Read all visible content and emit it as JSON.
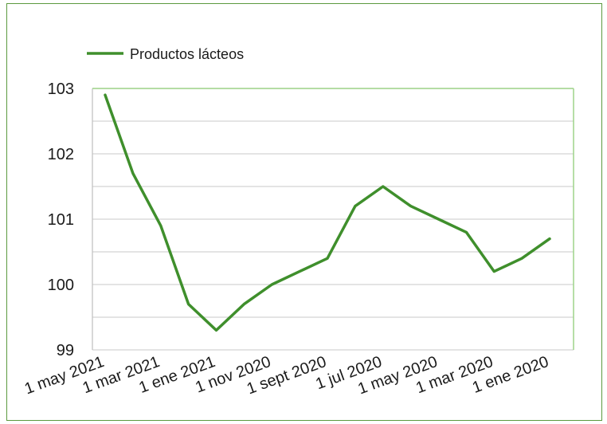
{
  "chart_data": {
    "type": "line",
    "title": "",
    "xlabel": "",
    "ylabel": "",
    "categories": [
      "1 may 2021",
      "1 mar 2021",
      "1 ene 2021",
      "1 nov 2020",
      "1 sept 2020",
      "1 jul 2020",
      "1 may 2020",
      "1 mar 2020",
      "1 ene 2020"
    ],
    "ylim": [
      99,
      103
    ],
    "yticks": [
      "103",
      "102",
      "101",
      "100",
      "99"
    ],
    "grid": true,
    "legend_position": "top-left",
    "series": [
      {
        "name": "Productos lácteos",
        "color": "#3f8f2c",
        "x": [
          0,
          0.5,
          1,
          1.5,
          2,
          2.5,
          3,
          3.5,
          4,
          4.5,
          5,
          5.5,
          6,
          6.5,
          7,
          7.5,
          8
        ],
        "values": [
          102.9,
          101.7,
          100.9,
          99.7,
          99.3,
          99.7,
          100.0,
          100.2,
          100.4,
          101.2,
          101.5,
          101.2,
          101.0,
          100.8,
          100.2,
          100.4,
          100.7
        ]
      }
    ]
  }
}
